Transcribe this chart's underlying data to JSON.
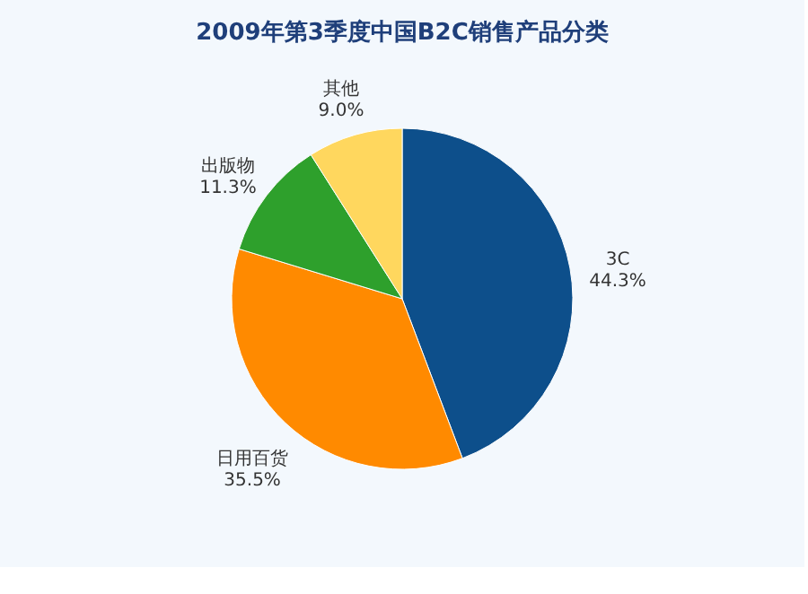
{
  "chart_data": {
    "type": "pie",
    "title": "2009年第3季度中国B2C销售产品分类",
    "categories": [
      "3C",
      "日用百货",
      "出版物",
      "其他"
    ],
    "values": [
      44.3,
      35.5,
      11.3,
      9.0
    ],
    "value_labels": [
      "44.3%",
      "35.5%",
      "11.3%",
      "9.0%"
    ],
    "colors": [
      "#0d4f8b",
      "#ff8a00",
      "#2ea02c",
      "#ffd75e"
    ],
    "legend": false
  }
}
